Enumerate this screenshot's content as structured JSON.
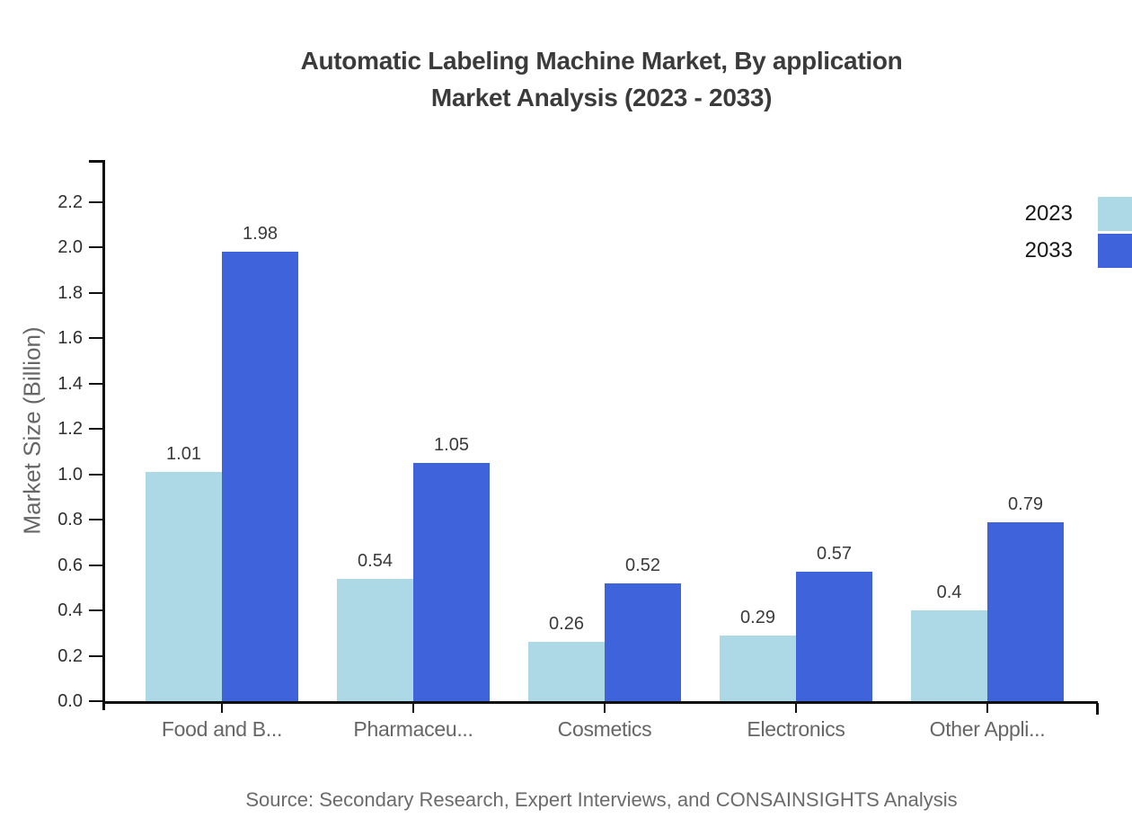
{
  "header": {
    "title_line1": "Automatic Labeling Machine Market, By application",
    "title_line2": "Market Analysis (2023 - 2033)"
  },
  "footer": {
    "source": "Source: Secondary Research, Expert Interviews, and CONSAINSIGHTS Analysis"
  },
  "chart_data": {
    "type": "bar",
    "title": "Automatic Labeling Machine Market, By application Market Analysis (2023 - 2033)",
    "categories": [
      "Food and B...",
      "Pharmaceu...",
      "Cosmetics",
      "Electronics",
      "Other Appli..."
    ],
    "series": [
      {
        "name": "2023",
        "color": "#ADD8E6",
        "values": [
          1.01,
          0.54,
          0.26,
          0.29,
          0.4
        ]
      },
      {
        "name": "2033",
        "color": "#3E63DB",
        "values": [
          1.98,
          1.05,
          0.52,
          0.57,
          0.79
        ]
      }
    ],
    "ylabel": "Market Size (Billion)",
    "xlabel": "",
    "ylim": [
      0,
      2.38
    ],
    "yticks": [
      0,
      0.2,
      0.4,
      0.6,
      0.8,
      1,
      1.2,
      1.4,
      1.6,
      1.8,
      2,
      2.2
    ],
    "grid": false,
    "legend_position": "top-right",
    "bar_value_labels": true
  },
  "colors": {
    "series_2023": "#ADD8E6",
    "series_2033": "#3E63DB",
    "axis": "#101010",
    "title_text": "#3B3B3B",
    "tick_label_text": "#2F2F2F",
    "category_label_text": "#666666",
    "source_text": "#6B6B6B"
  }
}
